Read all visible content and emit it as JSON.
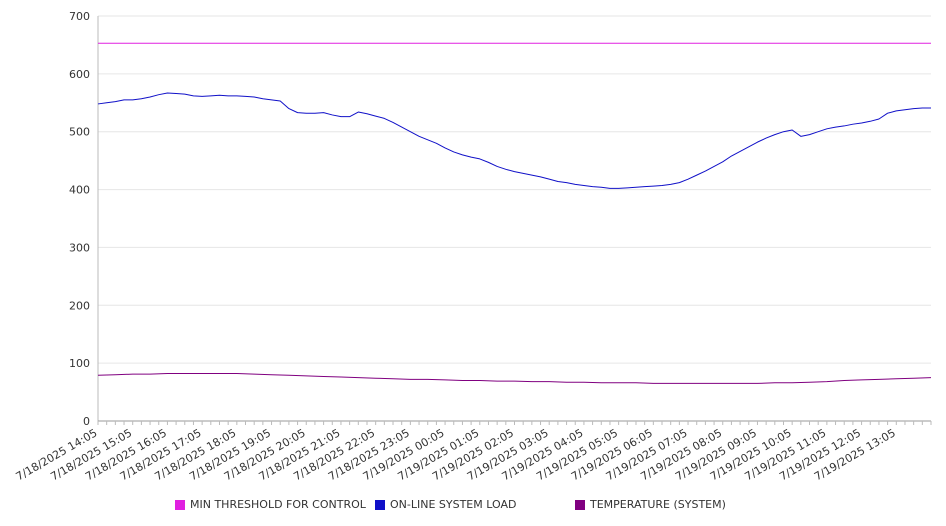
{
  "chart_data": {
    "type": "line",
    "title": "",
    "xlabel": "",
    "ylabel": "",
    "ylim": [
      0,
      700
    ],
    "yticks": [
      0,
      100,
      200,
      300,
      400,
      500,
      600,
      700
    ],
    "grid": true,
    "legend_position": "bottom",
    "x_tick_labels": [
      "7/18/2025 14:05",
      "7/18/2025 15:05",
      "7/18/2025 16:05",
      "7/18/2025 17:05",
      "7/18/2025 18:05",
      "7/18/2025 19:05",
      "7/18/2025 20:05",
      "7/18/2025 21:05",
      "7/18/2025 22:05",
      "7/18/2025 23:05",
      "7/19/2025 00:05",
      "7/19/2025 01:05",
      "7/19/2025 02:05",
      "7/19/2025 03:05",
      "7/19/2025 04:05",
      "7/19/2025 05:05",
      "7/19/2025 06:05",
      "7/19/2025 07:05",
      "7/19/2025 08:05",
      "7/19/2025 09:05",
      "7/19/2025 10:05",
      "7/19/2025 11:05",
      "7/19/2025 12:05",
      "7/19/2025 13:05"
    ],
    "x_hours_range": [
      0,
      24
    ],
    "series": [
      {
        "name": "MIN THRESHOLD FOR CONTROL",
        "color": "#e020e0",
        "points": [
          [
            0,
            653
          ],
          [
            24,
            653
          ]
        ]
      },
      {
        "name": "ON-LINE SYSTEM LOAD",
        "color": "#1010c8",
        "points": [
          [
            0,
            548
          ],
          [
            0.25,
            550
          ],
          [
            0.5,
            552
          ],
          [
            0.75,
            555
          ],
          [
            1,
            555
          ],
          [
            1.25,
            557
          ],
          [
            1.5,
            560
          ],
          [
            1.75,
            564
          ],
          [
            2,
            567
          ],
          [
            2.25,
            566
          ],
          [
            2.5,
            565
          ],
          [
            2.75,
            562
          ],
          [
            3,
            561
          ],
          [
            3.25,
            562
          ],
          [
            3.5,
            563
          ],
          [
            3.75,
            562
          ],
          [
            4,
            562
          ],
          [
            4.25,
            561
          ],
          [
            4.5,
            560
          ],
          [
            4.75,
            557
          ],
          [
            5,
            555
          ],
          [
            5.25,
            553
          ],
          [
            5.5,
            540
          ],
          [
            5.75,
            533
          ],
          [
            6,
            532
          ],
          [
            6.25,
            532
          ],
          [
            6.5,
            533
          ],
          [
            6.75,
            529
          ],
          [
            7,
            526
          ],
          [
            7.25,
            526
          ],
          [
            7.5,
            534
          ],
          [
            7.75,
            531
          ],
          [
            8,
            527
          ],
          [
            8.25,
            523
          ],
          [
            8.5,
            516
          ],
          [
            8.75,
            508
          ],
          [
            9,
            500
          ],
          [
            9.25,
            492
          ],
          [
            9.5,
            486
          ],
          [
            9.75,
            480
          ],
          [
            10,
            472
          ],
          [
            10.25,
            465
          ],
          [
            10.5,
            460
          ],
          [
            10.75,
            456
          ],
          [
            11,
            453
          ],
          [
            11.25,
            447
          ],
          [
            11.5,
            440
          ],
          [
            11.75,
            435
          ],
          [
            12,
            431
          ],
          [
            12.25,
            428
          ],
          [
            12.5,
            425
          ],
          [
            12.75,
            422
          ],
          [
            13,
            418
          ],
          [
            13.25,
            414
          ],
          [
            13.5,
            412
          ],
          [
            13.75,
            409
          ],
          [
            14,
            407
          ],
          [
            14.25,
            405
          ],
          [
            14.5,
            404
          ],
          [
            14.75,
            402
          ],
          [
            15,
            402
          ],
          [
            15.25,
            403
          ],
          [
            15.5,
            404
          ],
          [
            15.75,
            405
          ],
          [
            16,
            406
          ],
          [
            16.25,
            407
          ],
          [
            16.5,
            409
          ],
          [
            16.75,
            412
          ],
          [
            17,
            418
          ],
          [
            17.25,
            425
          ],
          [
            17.5,
            432
          ],
          [
            17.75,
            440
          ],
          [
            18,
            448
          ],
          [
            18.25,
            458
          ],
          [
            18.5,
            466
          ],
          [
            18.75,
            474
          ],
          [
            19,
            482
          ],
          [
            19.25,
            489
          ],
          [
            19.5,
            495
          ],
          [
            19.75,
            500
          ],
          [
            20,
            503
          ],
          [
            20.25,
            492
          ],
          [
            20.5,
            495
          ],
          [
            20.75,
            500
          ],
          [
            21,
            505
          ],
          [
            21.25,
            508
          ],
          [
            21.5,
            510
          ],
          [
            21.75,
            513
          ],
          [
            22,
            515
          ],
          [
            22.25,
            518
          ],
          [
            22.5,
            522
          ],
          [
            22.75,
            532
          ],
          [
            23,
            536
          ],
          [
            23.25,
            538
          ],
          [
            23.5,
            540
          ],
          [
            23.75,
            541
          ],
          [
            24,
            541
          ]
        ]
      },
      {
        "name": "TEMPERATURE (SYSTEM)",
        "color": "#800080",
        "points": [
          [
            0,
            79
          ],
          [
            0.5,
            80
          ],
          [
            1,
            81
          ],
          [
            1.5,
            81
          ],
          [
            2,
            82
          ],
          [
            2.5,
            82
          ],
          [
            3,
            82
          ],
          [
            3.5,
            82
          ],
          [
            4,
            82
          ],
          [
            4.5,
            81
          ],
          [
            5,
            80
          ],
          [
            5.5,
            79
          ],
          [
            6,
            78
          ],
          [
            6.5,
            77
          ],
          [
            7,
            76
          ],
          [
            7.5,
            75
          ],
          [
            8,
            74
          ],
          [
            8.5,
            73
          ],
          [
            9,
            72
          ],
          [
            9.5,
            72
          ],
          [
            10,
            71
          ],
          [
            10.5,
            70
          ],
          [
            11,
            70
          ],
          [
            11.5,
            69
          ],
          [
            12,
            69
          ],
          [
            12.5,
            68
          ],
          [
            13,
            68
          ],
          [
            13.5,
            67
          ],
          [
            14,
            67
          ],
          [
            14.5,
            66
          ],
          [
            15,
            66
          ],
          [
            15.5,
            66
          ],
          [
            16,
            65
          ],
          [
            16.5,
            65
          ],
          [
            17,
            65
          ],
          [
            17.5,
            65
          ],
          [
            18,
            65
          ],
          [
            18.5,
            65
          ],
          [
            19,
            65
          ],
          [
            19.5,
            66
          ],
          [
            20,
            66
          ],
          [
            20.5,
            67
          ],
          [
            21,
            68
          ],
          [
            21.5,
            70
          ],
          [
            22,
            71
          ],
          [
            22.5,
            72
          ],
          [
            23,
            73
          ],
          [
            23.5,
            74
          ],
          [
            24,
            75
          ]
        ]
      }
    ]
  }
}
